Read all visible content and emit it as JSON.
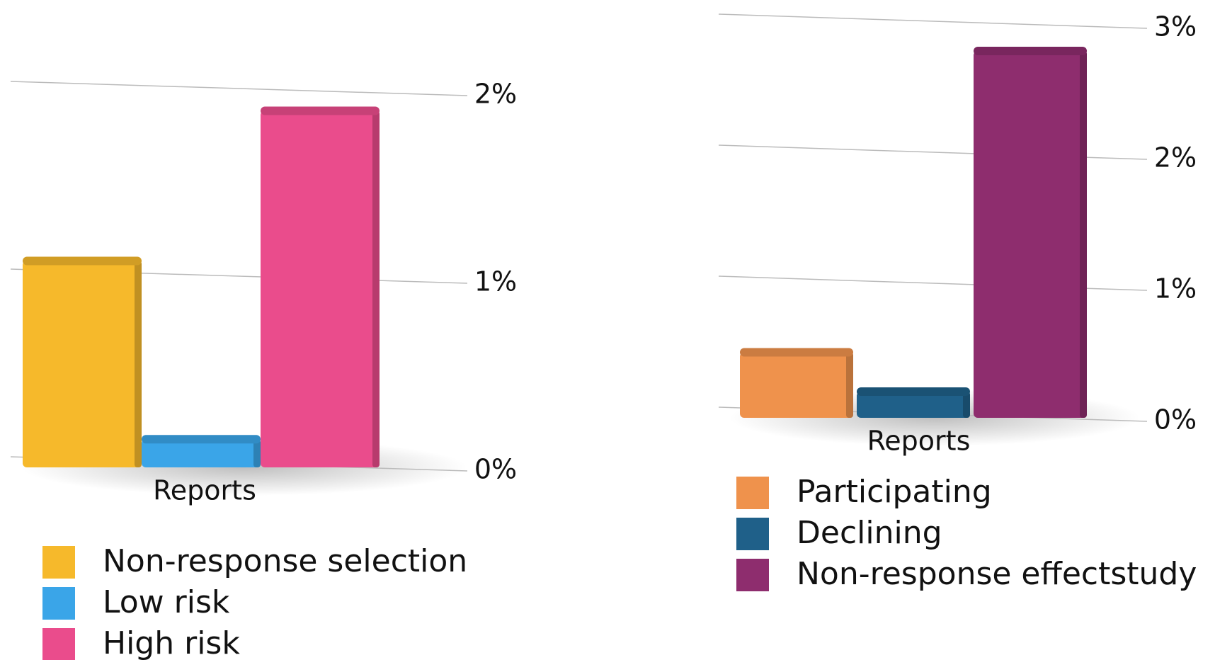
{
  "chart_data": [
    {
      "type": "bar",
      "categories": [
        "Reports"
      ],
      "series": [
        {
          "name": "Non-response selection",
          "color": "#f6b92b",
          "values": [
            1.1
          ]
        },
        {
          "name": "Low risk",
          "color": "#3aa5e8",
          "values": [
            0.15
          ]
        },
        {
          "name": "High risk",
          "color": "#ea4c8c",
          "values": [
            1.9
          ]
        }
      ],
      "ylim": [
        0,
        2
      ],
      "yticks": [
        {
          "value": 0,
          "label": "0%"
        },
        {
          "value": 1,
          "label": "1%"
        },
        {
          "value": 2,
          "label": "2%"
        }
      ],
      "grid": true
    },
    {
      "type": "bar",
      "categories": [
        "Reports"
      ],
      "series": [
        {
          "name": "Participating",
          "color": "#ef924c",
          "values": [
            0.5
          ]
        },
        {
          "name": "Declining",
          "color": "#1f6089",
          "values": [
            0.2
          ]
        },
        {
          "name": "Non-response effectstudy",
          "color": "#8e2d6e",
          "values": [
            2.8
          ]
        }
      ],
      "ylim": [
        0,
        3
      ],
      "yticks": [
        {
          "value": 0,
          "label": "0%"
        },
        {
          "value": 1,
          "label": "1%"
        },
        {
          "value": 2,
          "label": "2%"
        },
        {
          "value": 3,
          "label": "3%"
        }
      ],
      "grid": true
    }
  ]
}
